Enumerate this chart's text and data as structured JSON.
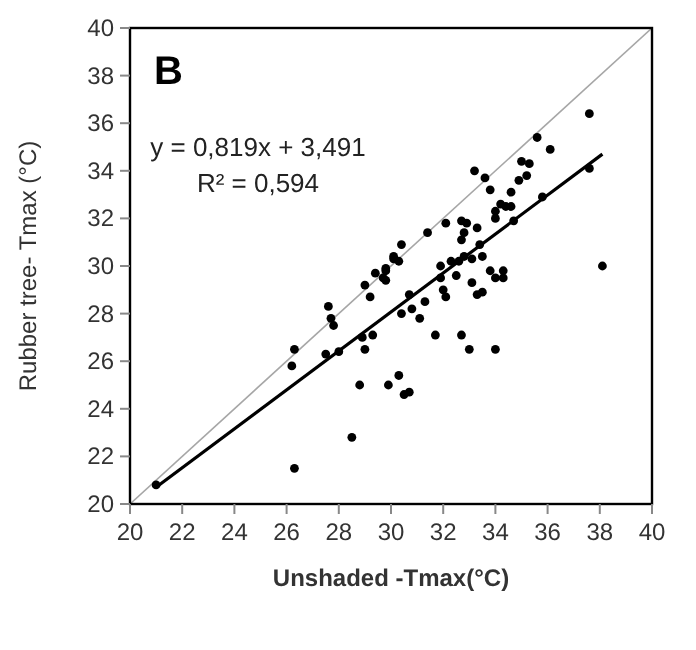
{
  "chart_data": {
    "type": "scatter",
    "title": "B",
    "xlabel": "Unshaded -Tmax(°C)",
    "ylabel": "Rubber tree- Tmax  (°C)",
    "xlim": [
      20,
      40
    ],
    "ylim": [
      20,
      40
    ],
    "xticks": [
      20,
      22,
      24,
      26,
      28,
      30,
      32,
      34,
      36,
      38,
      40
    ],
    "yticks": [
      20,
      22,
      24,
      26,
      28,
      30,
      32,
      34,
      36,
      38,
      40
    ],
    "grid": false,
    "marker": "circle",
    "annotations": [
      "y = 0,819x + 3,491",
      "R² = 0,594"
    ],
    "series": [
      {
        "type": "line",
        "color": "#a6a6a6",
        "x": [
          20,
          40
        ],
        "values": [
          20,
          40
        ],
        "marker": "none",
        "line_style": "solid"
      },
      {
        "type": "line",
        "color": "#000000",
        "x": [
          21,
          38.1
        ],
        "values": [
          20.7,
          34.7
        ],
        "marker": "none",
        "line_style": "solid"
      },
      {
        "color": "#000000",
        "x": [
          21.0,
          26.3,
          26.2,
          26.3,
          27.6,
          27.7,
          27.8,
          27.5,
          28.0,
          28.5,
          28.8,
          28.9,
          29.0,
          29.3,
          29.2,
          29.4,
          29.0,
          29.8,
          29.8,
          29.9,
          30.3,
          30.5,
          30.7,
          30.1,
          30.4,
          30.7,
          30.4,
          30.8,
          29.7,
          29.8,
          30.1,
          30.3,
          31.1,
          31.3,
          31.4,
          31.7,
          31.9,
          31.9,
          32.0,
          32.1,
          32.1,
          32.3,
          32.5,
          32.6,
          32.7,
          32.7,
          32.7,
          32.8,
          32.9,
          32.8,
          33.0,
          33.1,
          33.1,
          33.2,
          33.3,
          33.4,
          33.3,
          33.5,
          33.5,
          33.6,
          33.8,
          33.8,
          34.0,
          34.0,
          34.0,
          34.0,
          34.2,
          34.3,
          34.3,
          34.4,
          34.6,
          34.6,
          34.7,
          34.9,
          35.0,
          35.2,
          35.3,
          35.6,
          35.8,
          36.1,
          37.6,
          37.6,
          38.1
        ],
        "values": [
          20.8,
          26.5,
          25.8,
          21.5,
          28.3,
          27.8,
          27.5,
          26.3,
          26.4,
          22.8,
          25.0,
          27.0,
          26.5,
          27.1,
          28.7,
          29.7,
          29.2,
          29.8,
          29.4,
          25.0,
          25.4,
          24.6,
          24.7,
          30.4,
          30.9,
          28.8,
          28.0,
          28.2,
          29.5,
          29.9,
          30.3,
          30.2,
          27.8,
          28.5,
          31.4,
          27.1,
          29.5,
          30.0,
          29.0,
          31.8,
          28.7,
          30.2,
          29.6,
          30.2,
          27.1,
          31.9,
          31.1,
          31.4,
          31.8,
          30.4,
          26.5,
          29.3,
          30.3,
          34.0,
          31.6,
          30.9,
          28.8,
          30.4,
          28.9,
          33.7,
          33.2,
          29.8,
          29.5,
          32.0,
          32.3,
          26.5,
          32.6,
          29.8,
          29.5,
          32.5,
          32.5,
          33.1,
          31.9,
          33.6,
          34.4,
          33.8,
          34.3,
          35.4,
          32.9,
          34.9,
          36.4,
          34.1,
          30.0
        ]
      }
    ]
  }
}
